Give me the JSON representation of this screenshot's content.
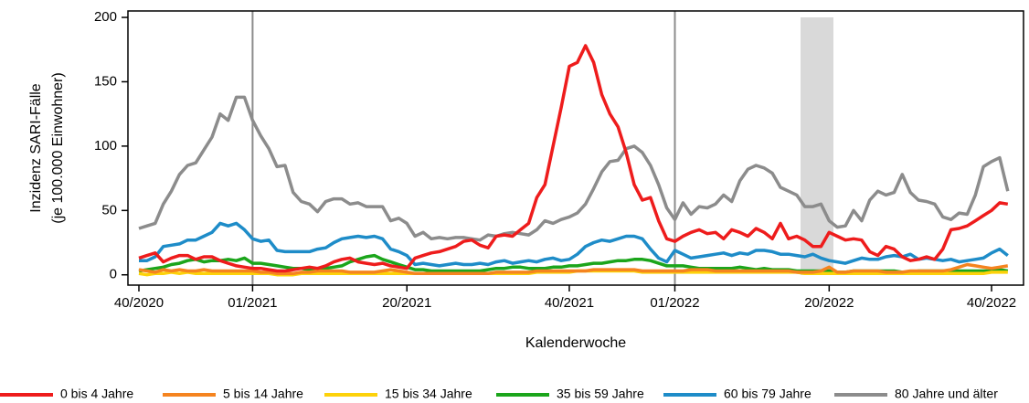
{
  "chart_data": {
    "type": "line",
    "ylabel": [
      "Inzidenz SARI-Fälle",
      "(je 100.000 Einwohner)"
    ],
    "xlabel": "Kalenderwoche",
    "categories": [
      "40/2020",
      null,
      null,
      null,
      null,
      null,
      null,
      null,
      null,
      null,
      null,
      null,
      null,
      null,
      "01/2021",
      null,
      null,
      null,
      null,
      null,
      null,
      null,
      null,
      null,
      null,
      null,
      null,
      null,
      null,
      null,
      null,
      null,
      null,
      "20/2021",
      null,
      null,
      null,
      null,
      null,
      null,
      null,
      null,
      null,
      null,
      null,
      null,
      null,
      null,
      null,
      null,
      null,
      null,
      null,
      "40/2021",
      null,
      null,
      null,
      null,
      null,
      null,
      null,
      null,
      null,
      null,
      null,
      null,
      "01/2022",
      null,
      null,
      null,
      null,
      null,
      null,
      null,
      null,
      null,
      null,
      null,
      null,
      null,
      null,
      null,
      null,
      null,
      null,
      "20/2022",
      null,
      null,
      null,
      null,
      null,
      null,
      null,
      null,
      null,
      null,
      null,
      null,
      null,
      null,
      null,
      null,
      null,
      null,
      null,
      "40/2022",
      null,
      null
    ],
    "ylim": [
      -8,
      205
    ],
    "yticks": [
      0,
      50,
      100,
      150,
      200
    ],
    "series": [
      {
        "name": "0 bis 4 Jahre",
        "color": "#ee1c1c",
        "values": [
          13,
          15,
          17,
          10,
          13,
          15,
          15,
          12,
          14,
          14,
          11,
          9,
          7,
          6,
          5,
          5,
          4,
          3,
          3,
          4,
          5,
          6,
          5,
          7,
          10,
          12,
          13,
          10,
          9,
          8,
          9,
          7,
          6,
          5,
          13,
          15,
          17,
          18,
          20,
          22,
          26,
          27,
          23,
          21,
          30,
          31,
          30,
          35,
          40,
          60,
          70,
          100,
          130,
          162,
          165,
          178,
          165,
          140,
          125,
          115,
          95,
          70,
          58,
          60,
          42,
          28,
          26,
          30,
          33,
          35,
          32,
          33,
          28,
          35,
          33,
          30,
          36,
          33,
          28,
          40,
          28,
          30,
          27,
          22,
          22,
          33,
          30,
          27,
          28,
          27,
          18,
          15,
          22,
          20,
          14,
          11,
          12,
          14,
          12,
          20,
          35,
          36,
          38,
          42,
          46,
          50,
          56,
          55
        ]
      },
      {
        "name": "5 bis 14 Jahre",
        "color": "#f5841f",
        "values": [
          4,
          3,
          2,
          4,
          3,
          4,
          3,
          3,
          4,
          3,
          3,
          3,
          3,
          3,
          3,
          2,
          2,
          1,
          1,
          1,
          2,
          2,
          3,
          3,
          3,
          3,
          2,
          2,
          2,
          2,
          3,
          4,
          3,
          2,
          1,
          1,
          1,
          1,
          1,
          1,
          1,
          1,
          1,
          1,
          2,
          2,
          2,
          2,
          2,
          3,
          3,
          3,
          3,
          3,
          3,
          3,
          4,
          4,
          4,
          4,
          4,
          4,
          3,
          3,
          3,
          3,
          3,
          3,
          4,
          4,
          4,
          3,
          3,
          3,
          3,
          3,
          3,
          3,
          3,
          3,
          3,
          2,
          2,
          2,
          3,
          6,
          2,
          2,
          3,
          3,
          3,
          3,
          2,
          2,
          2,
          3,
          3,
          3,
          3,
          3,
          4,
          6,
          8,
          7,
          6,
          5,
          6,
          7
        ]
      },
      {
        "name": "15 bis 34 Jahre",
        "color": "#fdd20a",
        "values": [
          1,
          0,
          1,
          1,
          2,
          1,
          2,
          1,
          1,
          1,
          1,
          1,
          1,
          1,
          1,
          1,
          1,
          0,
          0,
          0,
          1,
          1,
          1,
          1,
          1,
          1,
          1,
          1,
          1,
          1,
          1,
          1,
          1,
          1,
          1,
          1,
          1,
          1,
          1,
          1,
          1,
          1,
          1,
          1,
          1,
          1,
          1,
          1,
          1,
          2,
          2,
          2,
          2,
          2,
          3,
          3,
          3,
          3,
          3,
          3,
          3,
          3,
          2,
          2,
          2,
          2,
          2,
          2,
          2,
          2,
          2,
          2,
          2,
          2,
          2,
          2,
          2,
          2,
          2,
          2,
          2,
          2,
          1,
          1,
          1,
          1,
          1,
          1,
          1,
          1,
          1,
          1,
          1,
          1,
          1,
          1,
          1,
          1,
          1,
          1,
          1,
          1,
          1,
          1,
          1,
          2,
          2,
          2
        ]
      },
      {
        "name": "35 bis 59 Jahre",
        "color": "#1ba51b",
        "values": [
          3,
          4,
          5,
          6,
          8,
          9,
          11,
          12,
          10,
          11,
          11,
          12,
          11,
          13,
          9,
          9,
          8,
          7,
          6,
          5,
          5,
          4,
          4,
          5,
          6,
          7,
          10,
          12,
          14,
          15,
          12,
          10,
          8,
          6,
          4,
          4,
          3,
          3,
          3,
          3,
          3,
          3,
          3,
          4,
          5,
          5,
          6,
          6,
          5,
          5,
          5,
          6,
          6,
          7,
          7,
          8,
          9,
          9,
          10,
          11,
          11,
          12,
          12,
          11,
          9,
          7,
          7,
          7,
          6,
          5,
          5,
          5,
          5,
          5,
          6,
          5,
          4,
          5,
          4,
          4,
          4,
          3,
          3,
          3,
          3,
          3,
          2,
          2,
          3,
          3,
          3,
          3,
          3,
          3,
          2,
          2,
          3,
          3,
          3,
          3,
          3,
          3,
          3,
          3,
          3,
          3,
          4,
          3
        ]
      },
      {
        "name": "60 bis 79 Jahre",
        "color": "#1e8cc8",
        "values": [
          11,
          11,
          14,
          22,
          23,
          24,
          27,
          27,
          30,
          33,
          40,
          38,
          40,
          35,
          28,
          26,
          27,
          19,
          18,
          18,
          18,
          18,
          20,
          21,
          25,
          28,
          29,
          30,
          29,
          30,
          28,
          20,
          18,
          15,
          8,
          9,
          8,
          7,
          8,
          9,
          8,
          8,
          9,
          8,
          10,
          11,
          9,
          10,
          11,
          10,
          12,
          13,
          11,
          12,
          16,
          22,
          25,
          27,
          26,
          28,
          30,
          30,
          28,
          20,
          13,
          10,
          19,
          16,
          13,
          14,
          15,
          16,
          17,
          15,
          17,
          16,
          19,
          19,
          18,
          16,
          16,
          15,
          14,
          16,
          13,
          11,
          10,
          9,
          11,
          13,
          12,
          12,
          14,
          15,
          14,
          16,
          12,
          13,
          12,
          11,
          12,
          10,
          11,
          12,
          13,
          17,
          20,
          15
        ]
      },
      {
        "name": "80 Jahre und älter",
        "color": "#8c8c8c",
        "values": [
          36,
          38,
          40,
          55,
          65,
          78,
          85,
          87,
          97,
          107,
          125,
          120,
          138,
          138,
          120,
          108,
          98,
          84,
          85,
          64,
          57,
          55,
          49,
          57,
          59,
          59,
          55,
          56,
          53,
          53,
          53,
          42,
          44,
          40,
          30,
          33,
          28,
          29,
          28,
          29,
          29,
          28,
          27,
          31,
          30,
          32,
          33,
          32,
          31,
          35,
          42,
          40,
          43,
          45,
          48,
          55,
          67,
          80,
          88,
          89,
          98,
          100,
          95,
          85,
          70,
          52,
          43,
          56,
          47,
          53,
          52,
          55,
          62,
          57,
          73,
          82,
          85,
          83,
          79,
          68,
          65,
          62,
          53,
          53,
          55,
          42,
          37,
          38,
          50,
          42,
          58,
          65,
          62,
          64,
          78,
          64,
          58,
          57,
          55,
          45,
          43,
          48,
          47,
          62,
          84,
          88,
          91,
          65
        ]
      }
    ]
  }
}
